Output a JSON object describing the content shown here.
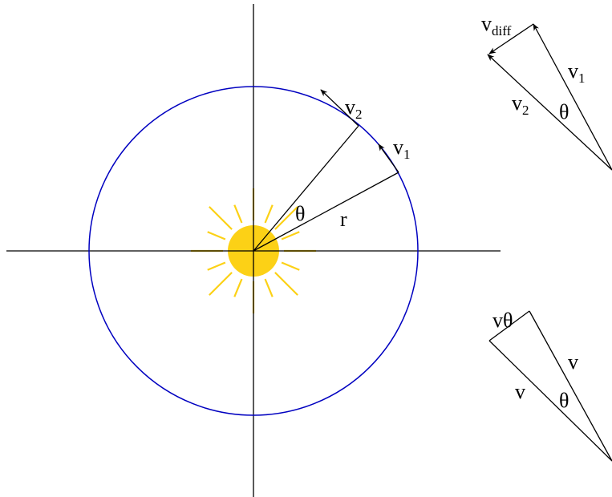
{
  "orbit": {
    "v2": {
      "base": "v",
      "sub": "2"
    },
    "v1": {
      "base": "v",
      "sub": "1"
    },
    "angle": "θ",
    "radius": "r"
  },
  "velocity_triangle": {
    "vdiff": {
      "base": "v",
      "sub": "diff"
    },
    "v1": {
      "base": "v",
      "sub": "1"
    },
    "v2": {
      "base": "v",
      "sub": "2"
    },
    "angle": "θ"
  },
  "small_triangle": {
    "opposite": "vθ",
    "side_right": "v",
    "side_left": "v",
    "angle": "θ"
  }
}
